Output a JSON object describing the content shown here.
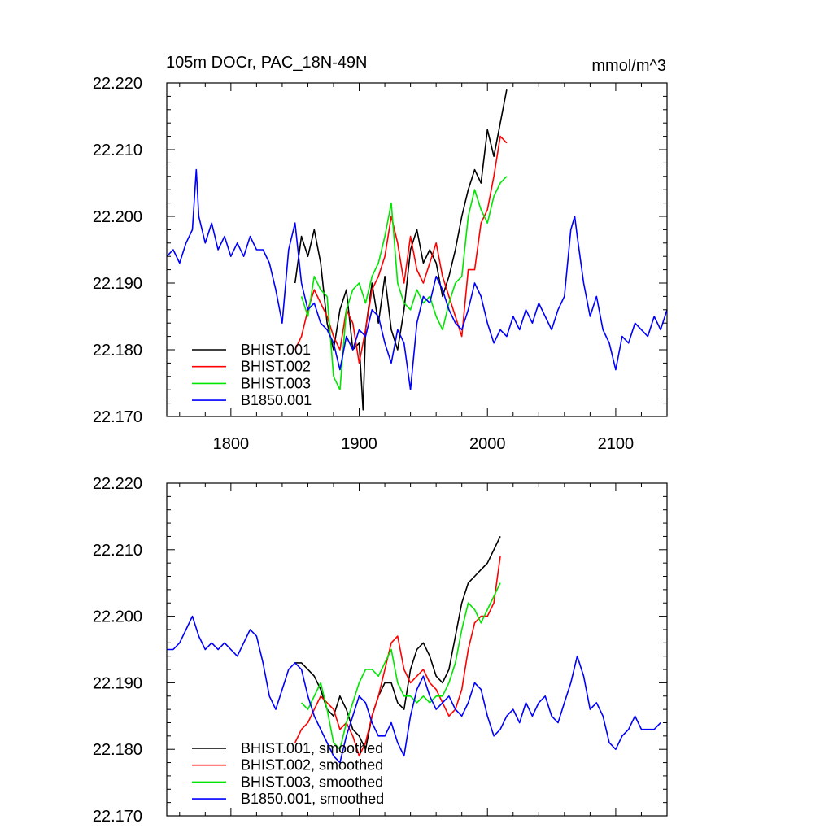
{
  "figure": {
    "title_left": "105m DOCr, PAC_18N-49N",
    "title_right": "mmol/m^3"
  },
  "chart_data": [
    {
      "type": "line",
      "panel": "top",
      "xlim": [
        1750,
        2140
      ],
      "ylim": [
        22.17,
        22.22
      ],
      "xticks": [
        1800,
        1900,
        2000,
        2100
      ],
      "xtick_labels": [
        "1800",
        "1900",
        "2000",
        "2100"
      ],
      "yticks": [
        22.17,
        22.18,
        22.19,
        22.2,
        22.21,
        22.22
      ],
      "ytick_labels": [
        "22.170",
        "22.180",
        "22.190",
        "22.200",
        "22.210",
        "22.220"
      ],
      "grid": false,
      "legend_position": "bottom-left",
      "series": [
        {
          "name": "BHIST.001",
          "color": "#000000",
          "x": [
            1850,
            1855,
            1860,
            1865,
            1870,
            1875,
            1880,
            1885,
            1890,
            1895,
            1900,
            1903,
            1905,
            1910,
            1915,
            1920,
            1925,
            1930,
            1935,
            1940,
            1945,
            1950,
            1955,
            1960,
            1965,
            1970,
            1975,
            1980,
            1985,
            1990,
            1995,
            2000,
            2005,
            2010,
            2015
          ],
          "y": [
            22.19,
            22.197,
            22.194,
            22.198,
            22.193,
            22.184,
            22.18,
            22.186,
            22.189,
            22.18,
            22.181,
            22.171,
            22.183,
            22.19,
            22.184,
            22.191,
            22.183,
            22.18,
            22.186,
            22.195,
            22.198,
            22.193,
            22.195,
            22.193,
            22.188,
            22.191,
            22.195,
            22.2,
            22.204,
            22.207,
            22.205,
            22.213,
            22.209,
            22.214,
            22.219
          ]
        },
        {
          "name": "BHIST.002",
          "color": "#ff0000",
          "x": [
            1850,
            1855,
            1860,
            1865,
            1870,
            1875,
            1880,
            1885,
            1890,
            1895,
            1900,
            1905,
            1910,
            1915,
            1920,
            1925,
            1930,
            1935,
            1940,
            1945,
            1950,
            1955,
            1960,
            1965,
            1970,
            1975,
            1980,
            1985,
            1990,
            1995,
            2000,
            2005,
            2010,
            2015
          ],
          "y": [
            22.18,
            22.182,
            22.186,
            22.189,
            22.187,
            22.185,
            22.182,
            22.18,
            22.186,
            22.184,
            22.178,
            22.183,
            22.189,
            22.191,
            22.194,
            22.2,
            22.196,
            22.19,
            22.197,
            22.192,
            22.19,
            22.193,
            22.196,
            22.191,
            22.188,
            22.185,
            22.182,
            22.192,
            22.192,
            22.199,
            22.201,
            22.206,
            22.212,
            22.211
          ]
        },
        {
          "name": "BHIST.003",
          "color": "#00e600",
          "x": [
            1855,
            1860,
            1865,
            1870,
            1875,
            1880,
            1885,
            1890,
            1895,
            1900,
            1905,
            1910,
            1915,
            1920,
            1925,
            1930,
            1935,
            1940,
            1945,
            1950,
            1955,
            1960,
            1965,
            1970,
            1975,
            1980,
            1985,
            1990,
            1995,
            2000,
            2005,
            2010,
            2015
          ],
          "y": [
            22.188,
            22.185,
            22.191,
            22.189,
            22.188,
            22.176,
            22.174,
            22.186,
            22.189,
            22.19,
            22.187,
            22.191,
            22.193,
            22.197,
            22.202,
            22.19,
            22.187,
            22.186,
            22.189,
            22.187,
            22.188,
            22.185,
            22.183,
            22.187,
            22.19,
            22.191,
            22.2,
            22.204,
            22.201,
            22.199,
            22.203,
            22.205,
            22.206
          ]
        },
        {
          "name": "B1850.001",
          "color": "#0000ff",
          "x": [
            1750,
            1755,
            1760,
            1765,
            1770,
            1773,
            1775,
            1780,
            1785,
            1790,
            1795,
            1800,
            1805,
            1810,
            1815,
            1820,
            1825,
            1830,
            1835,
            1840,
            1845,
            1850,
            1855,
            1860,
            1865,
            1870,
            1875,
            1880,
            1885,
            1890,
            1895,
            1900,
            1905,
            1910,
            1915,
            1920,
            1925,
            1930,
            1935,
            1940,
            1945,
            1950,
            1955,
            1960,
            1965,
            1970,
            1975,
            1980,
            1985,
            1990,
            1995,
            2000,
            2005,
            2010,
            2015,
            2020,
            2025,
            2030,
            2035,
            2040,
            2045,
            2050,
            2055,
            2060,
            2065,
            2068,
            2070,
            2075,
            2080,
            2085,
            2090,
            2095,
            2100,
            2105,
            2110,
            2115,
            2120,
            2125,
            2130,
            2135,
            2140
          ],
          "y": [
            22.194,
            22.195,
            22.193,
            22.196,
            22.198,
            22.207,
            22.2,
            22.196,
            22.199,
            22.195,
            22.197,
            22.194,
            22.196,
            22.194,
            22.197,
            22.195,
            22.195,
            22.193,
            22.189,
            22.184,
            22.195,
            22.199,
            22.19,
            22.186,
            22.187,
            22.184,
            22.183,
            22.181,
            22.177,
            22.182,
            22.18,
            22.183,
            22.182,
            22.186,
            22.185,
            22.181,
            22.178,
            22.183,
            22.181,
            22.174,
            22.184,
            22.188,
            22.187,
            22.191,
            22.189,
            22.186,
            22.184,
            22.183,
            22.186,
            22.19,
            22.188,
            22.184,
            22.181,
            22.183,
            22.182,
            22.185,
            22.183,
            22.186,
            22.184,
            22.187,
            22.185,
            22.183,
            22.186,
            22.188,
            22.198,
            22.2,
            22.197,
            22.19,
            22.185,
            22.188,
            22.183,
            22.181,
            22.177,
            22.182,
            22.181,
            22.184,
            22.183,
            22.182,
            22.185,
            22.183,
            22.186
          ]
        }
      ]
    },
    {
      "type": "line",
      "panel": "bottom",
      "xlim": [
        1750,
        2140
      ],
      "ylim": [
        22.17,
        22.22
      ],
      "xticks": [
        1800,
        1900,
        2000,
        2100
      ],
      "yticks": [
        22.17,
        22.18,
        22.19,
        22.2,
        22.21,
        22.22
      ],
      "ytick_labels": [
        "22.170",
        "22.180",
        "22.190",
        "22.200",
        "22.210",
        "22.220"
      ],
      "grid": false,
      "legend_position": "bottom-left",
      "series": [
        {
          "name": "BHIST.001, smoothed",
          "color": "#000000",
          "x": [
            1850,
            1855,
            1860,
            1865,
            1870,
            1875,
            1880,
            1885,
            1890,
            1895,
            1900,
            1905,
            1910,
            1915,
            1920,
            1925,
            1930,
            1935,
            1940,
            1945,
            1950,
            1955,
            1960,
            1965,
            1970,
            1975,
            1980,
            1985,
            1990,
            1995,
            2000,
            2005,
            2010
          ],
          "y": [
            22.193,
            22.193,
            22.192,
            22.191,
            22.189,
            22.186,
            22.185,
            22.188,
            22.186,
            22.183,
            22.182,
            22.18,
            22.185,
            22.188,
            22.19,
            22.19,
            22.187,
            22.186,
            22.192,
            22.195,
            22.196,
            22.194,
            22.191,
            22.19,
            22.192,
            22.197,
            22.202,
            22.205,
            22.206,
            22.207,
            22.208,
            22.21,
            22.212
          ]
        },
        {
          "name": "BHIST.002, smoothed",
          "color": "#ff0000",
          "x": [
            1850,
            1855,
            1860,
            1865,
            1870,
            1875,
            1880,
            1885,
            1890,
            1895,
            1900,
            1905,
            1910,
            1915,
            1920,
            1925,
            1930,
            1935,
            1940,
            1945,
            1950,
            1955,
            1960,
            1965,
            1970,
            1975,
            1980,
            1985,
            1990,
            1995,
            2000,
            2005,
            2010
          ],
          "y": [
            22.181,
            22.183,
            22.184,
            22.186,
            22.188,
            22.187,
            22.186,
            22.183,
            22.184,
            22.182,
            22.179,
            22.181,
            22.185,
            22.188,
            22.192,
            22.196,
            22.197,
            22.192,
            22.19,
            22.191,
            22.192,
            22.19,
            22.189,
            22.187,
            22.185,
            22.186,
            22.189,
            22.195,
            22.199,
            22.2,
            22.2,
            22.202,
            22.209
          ]
        },
        {
          "name": "BHIST.003, smoothed",
          "color": "#00e600",
          "x": [
            1855,
            1860,
            1865,
            1870,
            1875,
            1880,
            1885,
            1890,
            1895,
            1900,
            1905,
            1910,
            1915,
            1920,
            1925,
            1930,
            1935,
            1940,
            1945,
            1950,
            1955,
            1960,
            1965,
            1970,
            1975,
            1980,
            1985,
            1990,
            1995,
            2000,
            2005,
            2010
          ],
          "y": [
            22.187,
            22.186,
            22.188,
            22.19,
            22.186,
            22.181,
            22.18,
            22.184,
            22.187,
            22.19,
            22.192,
            22.192,
            22.191,
            22.193,
            22.195,
            22.19,
            22.188,
            22.188,
            22.187,
            22.188,
            22.187,
            22.188,
            22.188,
            22.19,
            22.193,
            22.198,
            22.202,
            22.201,
            22.199,
            22.201,
            22.203,
            22.205
          ]
        },
        {
          "name": "B1850.001, smoothed",
          "color": "#0000ff",
          "x": [
            1750,
            1755,
            1760,
            1765,
            1770,
            1775,
            1780,
            1785,
            1790,
            1795,
            1800,
            1805,
            1810,
            1815,
            1820,
            1825,
            1830,
            1835,
            1840,
            1845,
            1850,
            1855,
            1860,
            1865,
            1870,
            1875,
            1880,
            1885,
            1890,
            1895,
            1900,
            1905,
            1910,
            1915,
            1920,
            1925,
            1930,
            1935,
            1940,
            1945,
            1950,
            1955,
            1960,
            1965,
            1970,
            1975,
            1980,
            1985,
            1990,
            1995,
            2000,
            2005,
            2010,
            2015,
            2020,
            2025,
            2030,
            2035,
            2040,
            2045,
            2050,
            2055,
            2060,
            2065,
            2070,
            2075,
            2080,
            2085,
            2090,
            2095,
            2100,
            2105,
            2110,
            2115,
            2120,
            2125,
            2130,
            2135
          ],
          "y": [
            22.195,
            22.195,
            22.196,
            22.198,
            22.2,
            22.197,
            22.195,
            22.196,
            22.195,
            22.196,
            22.195,
            22.194,
            22.196,
            22.198,
            22.197,
            22.193,
            22.188,
            22.186,
            22.189,
            22.192,
            22.193,
            22.192,
            22.188,
            22.185,
            22.183,
            22.181,
            22.179,
            22.178,
            22.182,
            22.185,
            22.188,
            22.187,
            22.184,
            22.182,
            22.182,
            22.184,
            22.181,
            22.179,
            22.185,
            22.189,
            22.191,
            22.188,
            22.186,
            22.187,
            22.188,
            22.186,
            22.185,
            22.187,
            22.19,
            22.189,
            22.185,
            22.182,
            22.183,
            22.185,
            22.186,
            22.184,
            22.187,
            22.185,
            22.187,
            22.188,
            22.185,
            22.184,
            22.187,
            22.19,
            22.194,
            22.191,
            22.186,
            22.187,
            22.185,
            22.181,
            22.18,
            22.182,
            22.183,
            22.185,
            22.183,
            22.183,
            22.183,
            22.184
          ]
        }
      ]
    }
  ]
}
